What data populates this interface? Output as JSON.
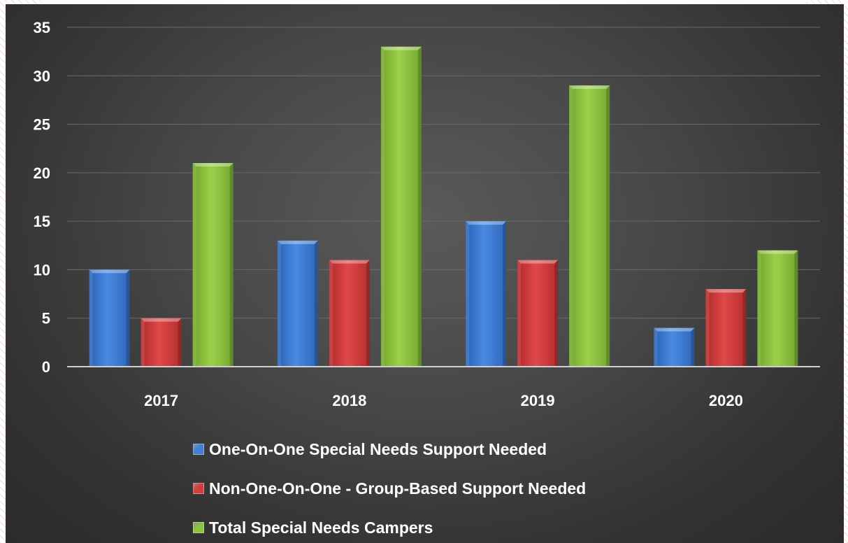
{
  "chart_data": {
    "type": "bar",
    "categories": [
      "2017",
      "2018",
      "2019",
      "2020"
    ],
    "series": [
      {
        "name": "One-On-One Special Needs Support Needed",
        "values": [
          10,
          13,
          15,
          4
        ],
        "color": "#3f7fd6"
      },
      {
        "name": "Non-One-On-One - Group-Based Support Needed",
        "values": [
          5,
          11,
          11,
          8
        ],
        "color": "#d63a3a"
      },
      {
        "name": "Total Special Needs Campers",
        "values": [
          21,
          33,
          29,
          12
        ],
        "color": "#8cc43e"
      }
    ],
    "title": "",
    "xlabel": "",
    "ylabel": "",
    "ylim": [
      0,
      35
    ],
    "yticks": [
      "0",
      "5",
      "10",
      "15",
      "20",
      "25",
      "30",
      "35"
    ],
    "grid": true,
    "legend_position": "bottom",
    "background": "#3d3d3d"
  }
}
